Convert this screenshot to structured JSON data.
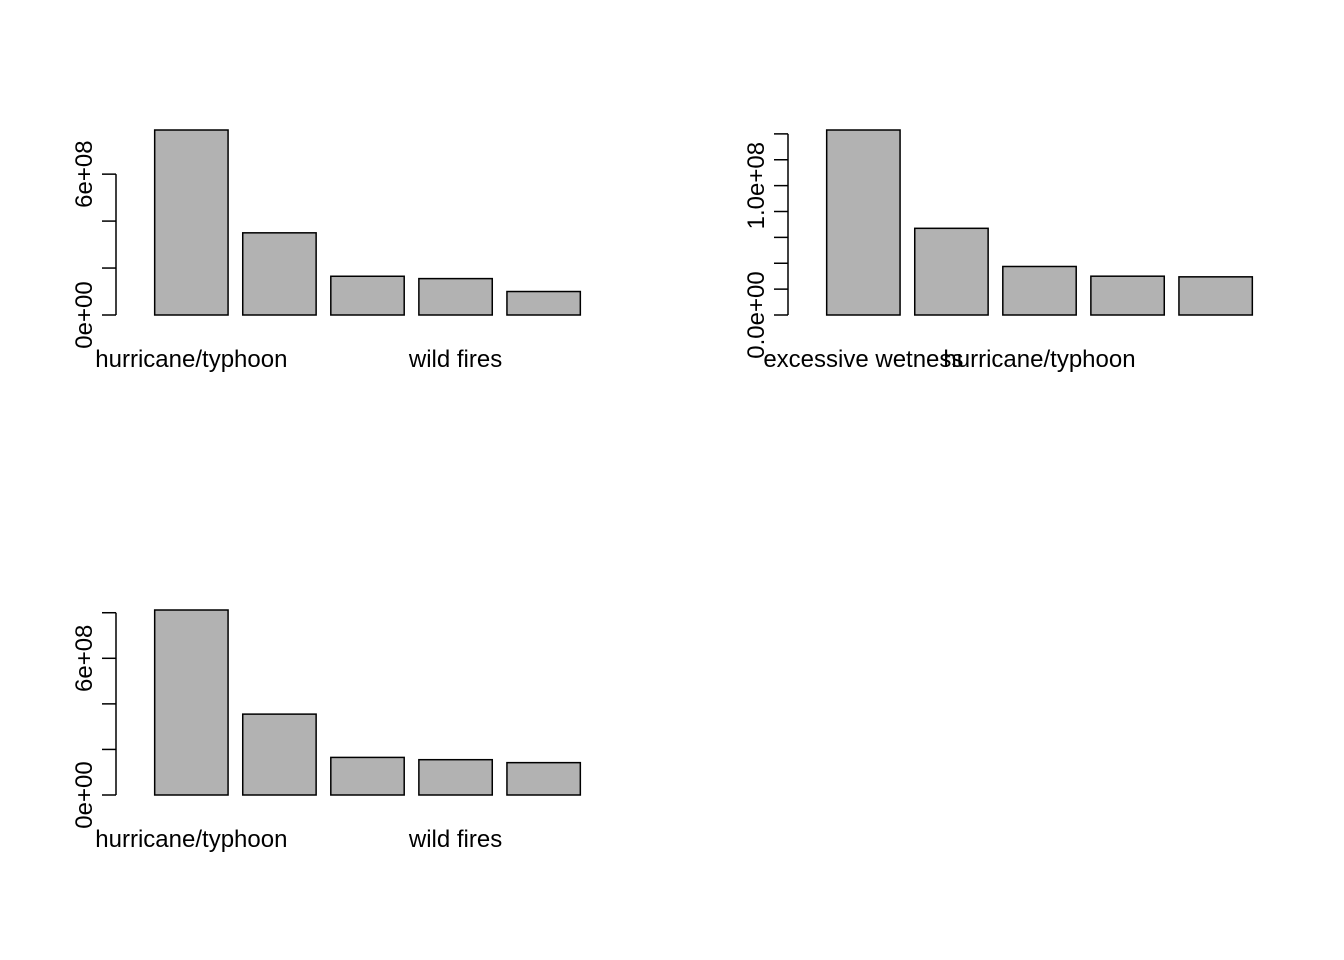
{
  "colors": {
    "bar_fill": "#b2b2b2",
    "bar_stroke": "#000000",
    "axis": "#000000",
    "background": "#ffffff"
  },
  "chart_data": [
    {
      "type": "bar",
      "categories": [
        "hurricane/typhoon",
        "",
        "",
        "wild fires",
        ""
      ],
      "values": [
        788000000,
        350000000,
        165000000,
        155000000,
        100000000
      ],
      "ylim": [
        0,
        788000000
      ],
      "yticks": [
        0,
        200000000,
        400000000,
        600000000
      ],
      "ytick_labels": [
        "0e+00",
        "",
        "",
        "6e+08"
      ],
      "xlabels_shown": [
        "hurricane/typhoon",
        "wild fires"
      ],
      "grid": false,
      "legend": "none"
    },
    {
      "type": "bar",
      "categories": [
        "excessive wetness",
        "",
        "hurricane/typhoon",
        "",
        ""
      ],
      "values": [
        143000000,
        67000000,
        37500000,
        30000000,
        29500000
      ],
      "ylim": [
        0,
        143000000
      ],
      "yticks": [
        0,
        20000000,
        40000000,
        60000000,
        80000000,
        100000000,
        120000000,
        140000000
      ],
      "ytick_labels": [
        "0.0e+00",
        "",
        "",
        "",
        "",
        "1.0e+08",
        "",
        ""
      ],
      "xlabels_shown": [
        "excessive wetness",
        "hurricane/typhoon"
      ],
      "grid": false,
      "legend": "none"
    },
    {
      "type": "bar",
      "categories": [
        "hurricane/typhoon",
        "",
        "",
        "wild fires",
        ""
      ],
      "values": [
        812000000,
        355000000,
        165000000,
        155000000,
        142000000
      ],
      "ylim": [
        0,
        812000000
      ],
      "yticks": [
        0,
        200000000,
        400000000,
        600000000,
        800000000
      ],
      "ytick_labels": [
        "0e+00",
        "",
        "",
        "6e+08",
        ""
      ],
      "xlabels_shown": [
        "hurricane/typhoon",
        "wild fires"
      ],
      "grid": false,
      "legend": "none"
    }
  ]
}
